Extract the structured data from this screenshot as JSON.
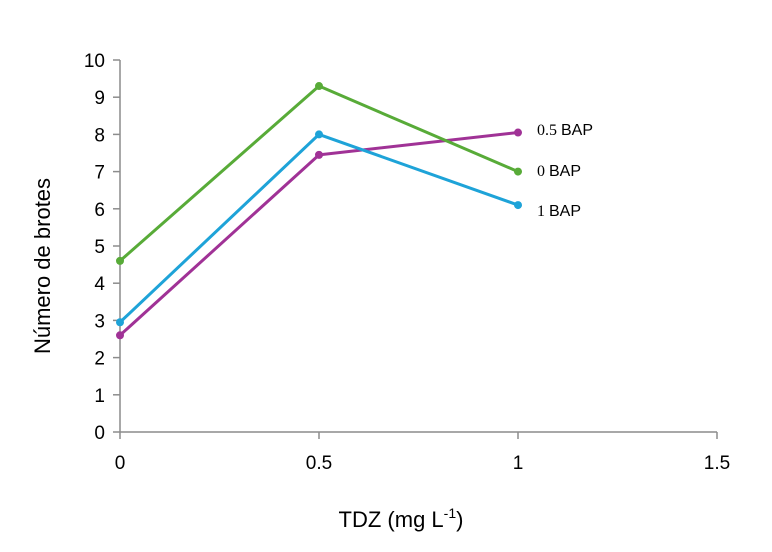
{
  "chart_data": {
    "type": "line",
    "xlabel": "TDZ (mg L",
    "xlabel_sup": "-1",
    "xlabel_end": ")",
    "ylabel": "Número de brotes",
    "xlim": [
      0,
      1.5
    ],
    "ylim": [
      0,
      10
    ],
    "xticks": [
      "0",
      "0.5",
      "1",
      "1.5"
    ],
    "yticks": [
      "0",
      "1",
      "2",
      "3",
      "4",
      "5",
      "6",
      "7",
      "8",
      "9",
      "10"
    ],
    "grid": false,
    "legend": "none",
    "x": [
      0,
      0.5,
      1
    ],
    "series": [
      {
        "name_num": "0.5",
        "name_unit": "BAP",
        "color": "#a03296",
        "values": [
          2.6,
          7.45,
          8.05
        ]
      },
      {
        "name_num": "0",
        "name_unit": "BAP",
        "color": "#58ab38",
        "values": [
          4.6,
          9.3,
          7.0
        ]
      },
      {
        "name_num": "1",
        "name_unit": "BAP",
        "color": "#1ea3d8",
        "values": [
          2.95,
          8.0,
          6.1
        ]
      }
    ]
  }
}
